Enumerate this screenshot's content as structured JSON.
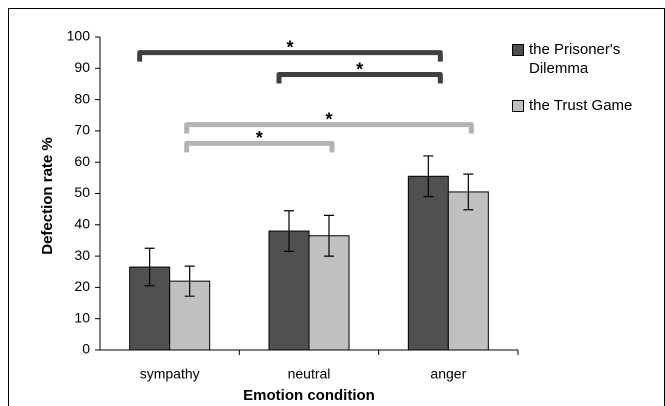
{
  "chart_data": {
    "type": "bar",
    "ylabel": "Defection rate %",
    "xlabel": "Emotion condition",
    "categories": [
      "sympathy",
      "neutral",
      "anger"
    ],
    "series": [
      {
        "name": "the Prisoner's Dilemma",
        "color": "#505050",
        "values": [
          26.5,
          38,
          55.5
        ],
        "errors": [
          6,
          6.5,
          6.5
        ]
      },
      {
        "name": "the Trust Game",
        "color": "#c0c0c0",
        "values": [
          22,
          36.5,
          50.5
        ],
        "errors": [
          4.8,
          6.5,
          5.7
        ]
      }
    ],
    "ylim": [
      0,
      100
    ],
    "yticks": [
      0,
      10,
      20,
      30,
      40,
      50,
      60,
      70,
      80,
      90,
      100
    ],
    "annotations": [
      "*",
      "*",
      "*",
      "*"
    ],
    "legend": "right"
  }
}
